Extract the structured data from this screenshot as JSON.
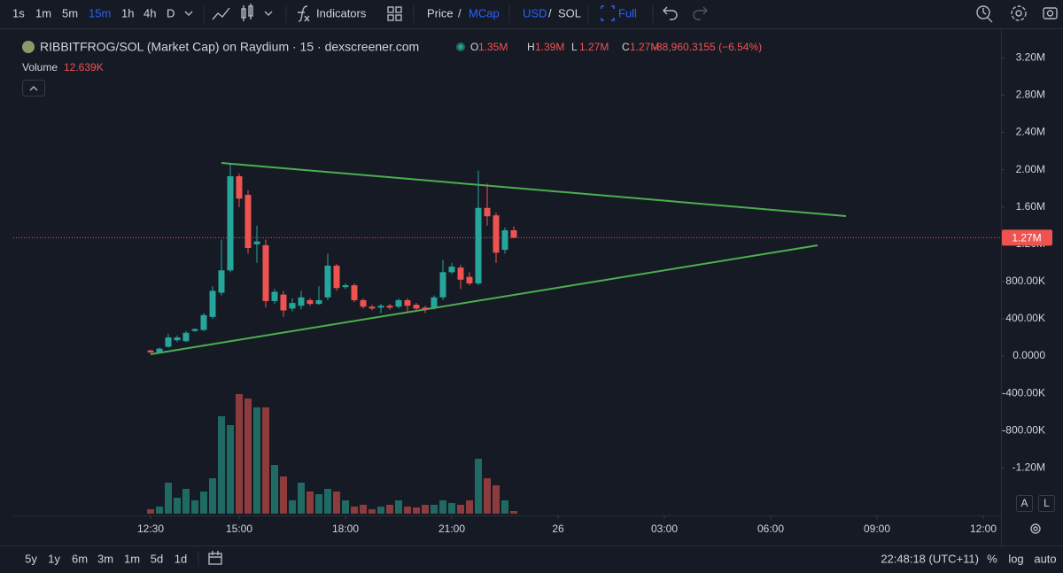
{
  "toolbar": {
    "intervals": [
      "1s",
      "1m",
      "5m",
      "15m",
      "1h",
      "4h",
      "D"
    ],
    "indicators": "Indicators",
    "price": "Price",
    "sep1": "/",
    "mcap": "MCap",
    "usd": "USD",
    "sep2": "/",
    "sol": "SOL",
    "full": "Full"
  },
  "chart_data": {
    "type": "candlestick",
    "title": "RIBBITFROG/SOL (Market Cap) on Raydium · 15 · dexscreener.com",
    "legend": {
      "o_label": "O",
      "o": "1.35M",
      "h_label": "H",
      "h": "1.39M",
      "l_label": "L",
      "l": "1.27M",
      "c_label": "C",
      "c": "1.27M",
      "change": "-88,960.3155 (−6.54%)"
    },
    "volume_label": "Volume",
    "volume_value": "12.639K",
    "open": [
      60000,
      40000,
      100000,
      170000,
      160000,
      270000,
      280000,
      420000,
      680000,
      920000,
      1930000,
      1730000,
      1200000,
      1190000,
      590000,
      660000,
      510000,
      540000,
      600000,
      560000,
      630000,
      970000,
      740000,
      760000,
      600000,
      530000,
      520000,
      540000,
      530000,
      600000,
      550000,
      520000,
      520000,
      630000,
      900000,
      950000,
      850000,
      780000,
      1590000,
      1510000,
      1140000,
      1350000
    ],
    "high": [
      70000,
      90000,
      240000,
      220000,
      270000,
      300000,
      460000,
      750000,
      1250000,
      2060000,
      1960000,
      1780000,
      1400000,
      1250000,
      720000,
      700000,
      620000,
      700000,
      620000,
      750000,
      1100000,
      990000,
      780000,
      780000,
      620000,
      550000,
      560000,
      560000,
      620000,
      620000,
      570000,
      540000,
      650000,
      1030000,
      1000000,
      980000,
      900000,
      1990000,
      1850000,
      1540000,
      1380000,
      1390000
    ],
    "low": [
      30000,
      30000,
      90000,
      150000,
      150000,
      260000,
      270000,
      400000,
      650000,
      900000,
      1600000,
      1100000,
      1000000,
      520000,
      560000,
      420000,
      480000,
      500000,
      540000,
      550000,
      600000,
      700000,
      720000,
      580000,
      510000,
      490000,
      460000,
      500000,
      510000,
      470000,
      490000,
      460000,
      500000,
      600000,
      880000,
      720000,
      760000,
      760000,
      1400000,
      1000000,
      1100000,
      1270000
    ],
    "close": [
      40000,
      80000,
      200000,
      200000,
      250000,
      290000,
      440000,
      700000,
      920000,
      1930000,
      1690000,
      1160000,
      1230000,
      590000,
      690000,
      490000,
      570000,
      630000,
      560000,
      600000,
      970000,
      730000,
      760000,
      600000,
      530000,
      510000,
      540000,
      520000,
      600000,
      540000,
      510000,
      500000,
      630000,
      900000,
      960000,
      820000,
      780000,
      1590000,
      1500000,
      1110000,
      1350000,
      1270000
    ],
    "volume": [
      21000,
      33600,
      147000,
      75600,
      117600,
      63000,
      105000,
      168000,
      462000,
      420000,
      567000,
      546000,
      504000,
      504000,
      231000,
      176400,
      63000,
      147000,
      105000,
      92400,
      117600,
      105000,
      63000,
      33600,
      42000,
      21000,
      33600,
      42000,
      63000,
      33600,
      29400,
      42000,
      42000,
      63000,
      50400,
      42000,
      63000,
      260400,
      168000,
      134400,
      63000,
      12639
    ],
    "up_color": "#26a69a",
    "down_color": "#ef5350",
    "up_volume_color": "#1f6b63",
    "down_volume_color": "#8e3b3d",
    "ylim": [
      -1710000,
      3460000
    ],
    "yticks": [
      {
        "value": 3200000,
        "label": "3.20M"
      },
      {
        "value": 2800000,
        "label": "2.80M"
      },
      {
        "value": 2400000,
        "label": "2.40M"
      },
      {
        "value": 2000000,
        "label": "2.00M"
      },
      {
        "value": 1600000,
        "label": "1.60M"
      },
      {
        "value": 1200000,
        "label": "1.20M"
      },
      {
        "value": 800000,
        "label": "800.00K"
      },
      {
        "value": 400000,
        "label": "400.00K"
      },
      {
        "value": 0,
        "label": "0.0000"
      },
      {
        "value": -400000,
        "label": "-400.00K"
      },
      {
        "value": -800000,
        "label": "-800.00K"
      },
      {
        "value": -1200000,
        "label": "-1.20M"
      }
    ],
    "xlim": [
      -15.5,
      96
    ],
    "xticks": [
      {
        "value": 0,
        "label": "12:30"
      },
      {
        "value": 10,
        "label": "15:00"
      },
      {
        "value": 22,
        "label": "18:00"
      },
      {
        "value": 34,
        "label": "21:00"
      },
      {
        "value": 46,
        "label": "26"
      },
      {
        "value": 58,
        "label": "03:00"
      },
      {
        "value": 70,
        "label": "06:00"
      },
      {
        "value": 82,
        "label": "09:00"
      },
      {
        "value": 94,
        "label": "12:00"
      }
    ],
    "last_price": {
      "value": 1270000,
      "label": "1.27M"
    }
  },
  "scale_buttons": [
    "A",
    "L"
  ],
  "footer": {
    "ranges": [
      "5y",
      "1y",
      "6m",
      "3m",
      "1m",
      "5d",
      "1d"
    ],
    "clock": "22:48:18 (UTC+11)",
    "percent": "%",
    "log": "log",
    "auto": "auto"
  }
}
